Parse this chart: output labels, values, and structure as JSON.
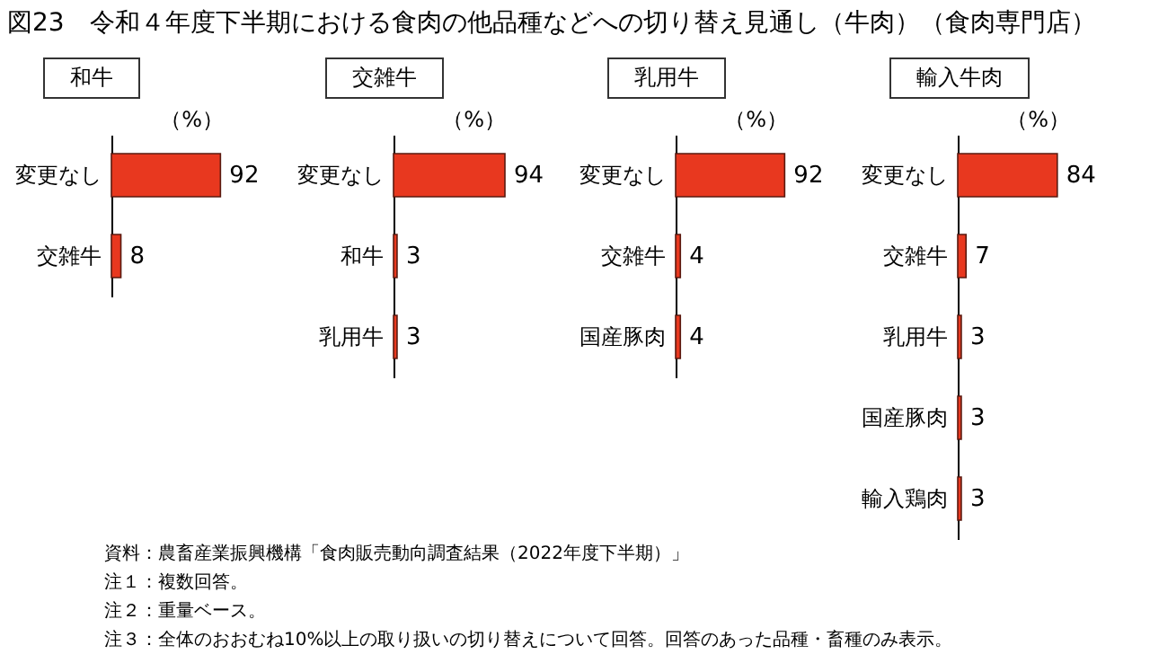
{
  "chart_data": [
    {
      "type": "other",
      "title": "図23　令和４年度下半期における食肉の他品種などへの切り替え見通し（牛肉）（食肉専門店）"
    },
    {
      "type": "bar",
      "orientation": "horizontal",
      "title": "和牛",
      "xlabel": "（%）",
      "categories": [
        "変更なし",
        "交雑牛"
      ],
      "values": [
        92,
        8
      ],
      "color": "#e8381f",
      "data_labels": true
    },
    {
      "type": "bar",
      "orientation": "horizontal",
      "title": "交雑牛",
      "xlabel": "（%）",
      "categories": [
        "変更なし",
        "和牛",
        "乳用牛"
      ],
      "values": [
        94,
        3,
        3
      ],
      "color": "#e8381f",
      "data_labels": true
    },
    {
      "type": "bar",
      "orientation": "horizontal",
      "title": "乳用牛",
      "xlabel": "（%）",
      "categories": [
        "変更なし",
        "交雑牛",
        "国産豚肉"
      ],
      "values": [
        92,
        4,
        4
      ],
      "color": "#e8381f",
      "data_labels": true
    },
    {
      "type": "bar",
      "orientation": "horizontal",
      "title": "輸入牛肉",
      "xlabel": "（%）",
      "categories": [
        "変更なし",
        "交雑牛",
        "乳用牛",
        "国産豚肉",
        "輸入鶏肉"
      ],
      "values": [
        84,
        7,
        3,
        3,
        3
      ],
      "color": "#e8381f",
      "data_labels": true
    },
    {
      "type": "other",
      "annotations": [
        "資料：農畜産業振興機構「食肉販売動向調査結果（2022年度下半期）」",
        "注１：複数回答。",
        "注２：重量ベース。",
        "注３：全体のおおむね10%以上の取り扱いの切り替えについて回答。回答のあった品種・畜種のみ表示。"
      ]
    }
  ]
}
